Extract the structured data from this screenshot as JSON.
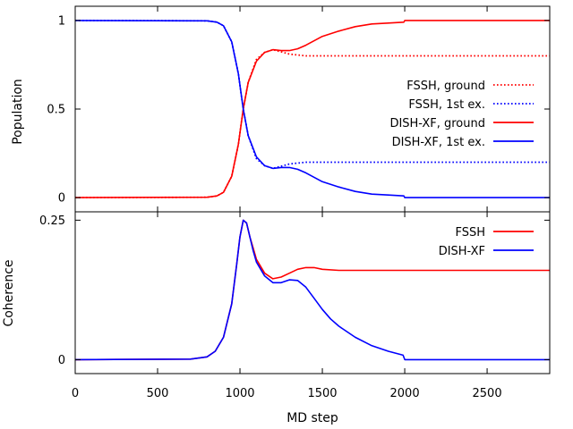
{
  "chart_data": [
    {
      "type": "line",
      "title": "",
      "xlabel": "",
      "ylabel": "Population",
      "xlim": [
        0,
        2880
      ],
      "ylim": [
        -0.08,
        1.08
      ],
      "xticks": [
        0,
        500,
        1000,
        1500,
        2000,
        2500
      ],
      "xtick_labels": [
        "",
        "",
        "",
        "",
        "",
        ""
      ],
      "yticks": [
        0,
        0.5,
        1
      ],
      "ytick_labels": [
        "0",
        "0.5",
        "1"
      ],
      "grid": false,
      "legend_position": "right",
      "series": [
        {
          "name": "FSSH, ground",
          "color": "#ff0000",
          "style": "dotted",
          "x": [
            0,
            800,
            860,
            900,
            950,
            990,
            1020,
            1050,
            1100,
            1150,
            1200,
            1300,
            1400,
            1600,
            1800,
            2000,
            2200,
            2400,
            2600,
            2880
          ],
          "y": [
            0,
            0.002,
            0.01,
            0.03,
            0.12,
            0.3,
            0.5,
            0.65,
            0.78,
            0.82,
            0.835,
            0.81,
            0.8,
            0.8,
            0.8,
            0.8,
            0.8,
            0.8,
            0.8,
            0.8
          ]
        },
        {
          "name": "FSSH, 1st ex.",
          "color": "#0000ff",
          "style": "dotted",
          "x": [
            0,
            800,
            860,
            900,
            950,
            990,
            1020,
            1050,
            1100,
            1150,
            1200,
            1300,
            1400,
            1600,
            1800,
            2000,
            2200,
            2400,
            2600,
            2880
          ],
          "y": [
            1,
            0.998,
            0.99,
            0.97,
            0.88,
            0.7,
            0.5,
            0.35,
            0.22,
            0.18,
            0.165,
            0.19,
            0.2,
            0.2,
            0.2,
            0.2,
            0.2,
            0.2,
            0.2,
            0.2
          ]
        },
        {
          "name": "DISH-XF, ground",
          "color": "#ff0000",
          "style": "solid",
          "x": [
            0,
            800,
            860,
            900,
            950,
            990,
            1020,
            1050,
            1100,
            1150,
            1200,
            1250,
            1300,
            1350,
            1400,
            1500,
            1600,
            1700,
            1800,
            1900,
            1995,
            2000,
            2200,
            2500,
            2880
          ],
          "y": [
            0,
            0.002,
            0.01,
            0.03,
            0.12,
            0.3,
            0.5,
            0.65,
            0.77,
            0.82,
            0.835,
            0.83,
            0.83,
            0.84,
            0.86,
            0.91,
            0.94,
            0.965,
            0.98,
            0.985,
            0.99,
            1.0,
            1.0,
            1.0,
            1.0
          ]
        },
        {
          "name": "DISH-XF, 1st ex.",
          "color": "#0000ff",
          "style": "solid",
          "x": [
            0,
            800,
            860,
            900,
            950,
            990,
            1020,
            1050,
            1100,
            1150,
            1200,
            1250,
            1300,
            1350,
            1400,
            1500,
            1600,
            1700,
            1800,
            1900,
            1995,
            2000,
            2200,
            2500,
            2880
          ],
          "y": [
            1,
            0.998,
            0.99,
            0.97,
            0.88,
            0.7,
            0.5,
            0.35,
            0.23,
            0.18,
            0.165,
            0.17,
            0.17,
            0.16,
            0.14,
            0.09,
            0.06,
            0.035,
            0.02,
            0.015,
            0.01,
            0.0,
            0.0,
            0.0,
            0.0
          ]
        }
      ]
    },
    {
      "type": "line",
      "title": "",
      "xlabel": "MD step",
      "ylabel": "Coherence",
      "xlim": [
        0,
        2880
      ],
      "ylim": [
        -0.025,
        0.265
      ],
      "xticks": [
        0,
        500,
        1000,
        1500,
        2000,
        2500
      ],
      "xtick_labels": [
        "0",
        "500",
        "1000",
        "1500",
        "2000",
        "2500"
      ],
      "yticks": [
        0,
        0.25
      ],
      "ytick_labels": [
        "0",
        "0.25"
      ],
      "grid": false,
      "legend_position": "top-right",
      "series": [
        {
          "name": "FSSH",
          "color": "#ff0000",
          "style": "solid",
          "x": [
            0,
            700,
            800,
            850,
            900,
            950,
            980,
            1000,
            1020,
            1040,
            1060,
            1080,
            1100,
            1150,
            1200,
            1250,
            1300,
            1350,
            1400,
            1450,
            1500,
            1600,
            1800,
            2000,
            2200,
            2400,
            2600,
            2880
          ],
          "y": [
            0,
            0.001,
            0.005,
            0.015,
            0.04,
            0.1,
            0.17,
            0.22,
            0.25,
            0.245,
            0.22,
            0.2,
            0.18,
            0.155,
            0.145,
            0.148,
            0.155,
            0.162,
            0.165,
            0.165,
            0.162,
            0.16,
            0.16,
            0.16,
            0.16,
            0.16,
            0.16,
            0.16
          ]
        },
        {
          "name": "DISH-XF",
          "color": "#0000ff",
          "style": "solid",
          "x": [
            0,
            700,
            800,
            850,
            900,
            950,
            980,
            1000,
            1020,
            1040,
            1060,
            1080,
            1100,
            1150,
            1200,
            1250,
            1300,
            1350,
            1400,
            1450,
            1500,
            1550,
            1600,
            1700,
            1800,
            1900,
            1990,
            2000,
            2200,
            2500,
            2880
          ],
          "y": [
            0,
            0.001,
            0.005,
            0.015,
            0.04,
            0.1,
            0.17,
            0.22,
            0.25,
            0.245,
            0.22,
            0.195,
            0.175,
            0.15,
            0.138,
            0.138,
            0.143,
            0.142,
            0.13,
            0.11,
            0.09,
            0.073,
            0.06,
            0.04,
            0.025,
            0.015,
            0.008,
            0.0,
            0.0,
            0.0,
            0.0
          ]
        }
      ]
    }
  ]
}
